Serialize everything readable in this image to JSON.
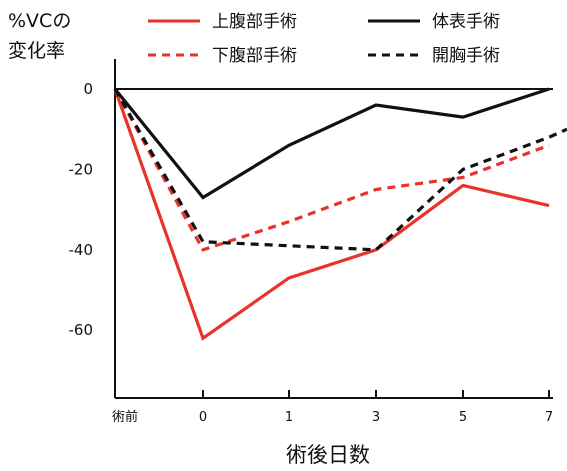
{
  "chart_data": {
    "type": "line",
    "title": "",
    "ylabel_lines": [
      "%VCの",
      "変化率"
    ],
    "xlabel": "術後日数",
    "categories": [
      "術前",
      "0",
      "1",
      "3",
      "5",
      "7"
    ],
    "ylim": [
      -75,
      2
    ],
    "yticks": [
      0,
      -20,
      -40,
      -60
    ],
    "grid": false,
    "legend_position": "top-right",
    "series": [
      {
        "name": "上腹部手術",
        "color": "#e8322a",
        "dash": "solid",
        "values": [
          0,
          -62,
          -47,
          -40,
          -24,
          -29
        ]
      },
      {
        "name": "下腹部手術",
        "color": "#e8322a",
        "dash": "dashed",
        "values": [
          0,
          -40,
          -33,
          -25,
          -22,
          -14
        ]
      },
      {
        "name": "体表手術",
        "color": "#111111",
        "dash": "solid",
        "values": [
          0,
          -27,
          -14,
          -4,
          -7,
          0
        ]
      },
      {
        "name": "開胸手術",
        "color": "#111111",
        "dash": "dashed",
        "values": [
          0,
          -38,
          -39,
          -40,
          -20,
          -12
        ]
      }
    ],
    "extra_points": [
      {
        "series": "開胸手術",
        "x_beyond_last": true,
        "value": -10
      }
    ]
  }
}
